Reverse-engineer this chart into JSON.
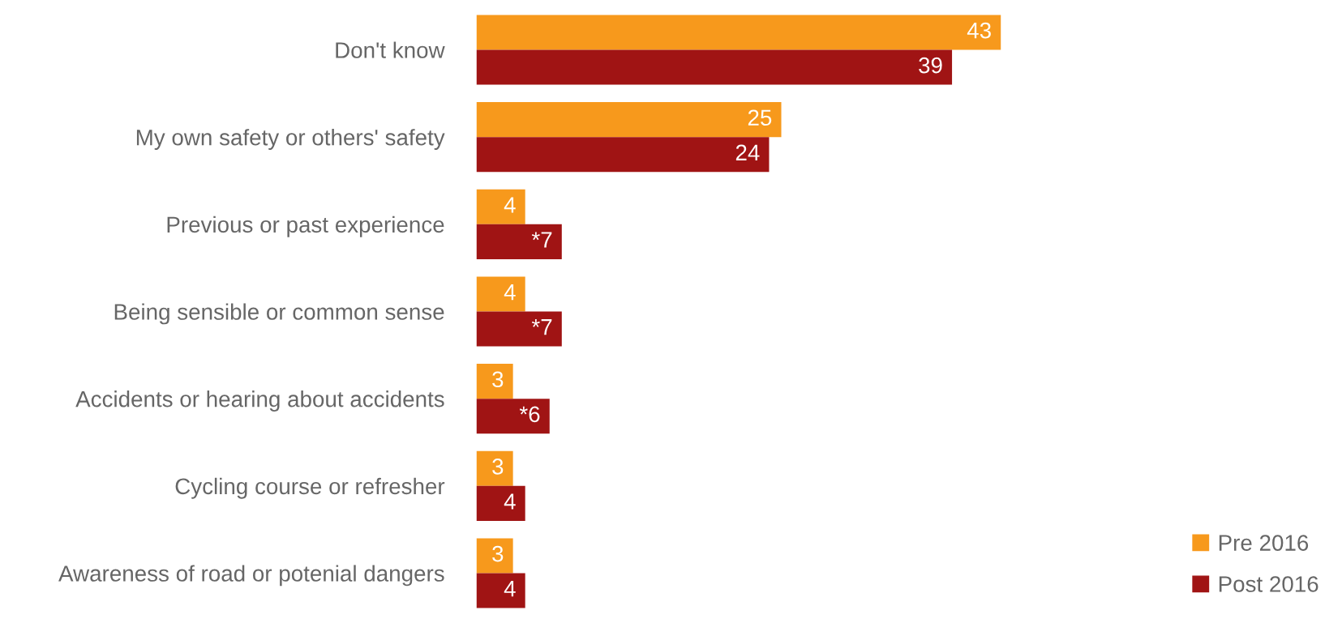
{
  "chart_data": {
    "type": "bar",
    "orientation": "horizontal",
    "categories": [
      "Don't know",
      "My own safety or others' safety",
      "Previous or past experience",
      "Being sensible or common sense",
      "Accidents or hearing about accidents",
      "Cycling course or refresher",
      "Awareness of road or potenial dangers"
    ],
    "series": [
      {
        "name": "Pre 2016",
        "color": "#f7991c",
        "values": [
          43,
          25,
          4,
          4,
          3,
          3,
          3
        ],
        "value_labels": [
          "43",
          "25",
          "4",
          "4",
          "3",
          "3",
          "3"
        ]
      },
      {
        "name": "Post 2016",
        "color": "#a01414",
        "values": [
          39,
          24,
          7,
          7,
          6,
          4,
          4
        ],
        "value_labels": [
          "39",
          "24",
          "*7",
          "*7",
          "*6",
          "4",
          "4"
        ]
      }
    ],
    "legend": "bottom right"
  }
}
